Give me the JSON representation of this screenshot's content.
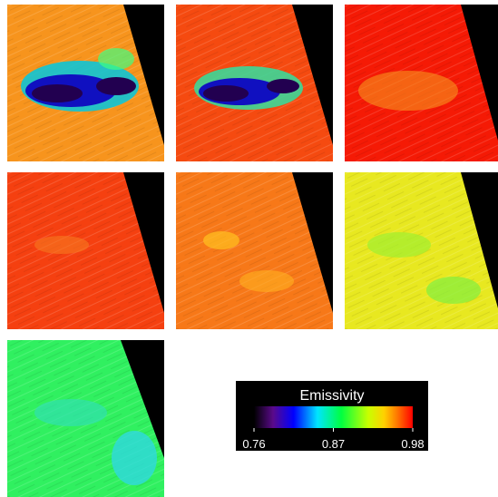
{
  "colorbar": {
    "title": "Emissivity",
    "range": [
      0.76,
      0.98
    ],
    "ticks": [
      0.76,
      0.87,
      0.98
    ]
  }
}
